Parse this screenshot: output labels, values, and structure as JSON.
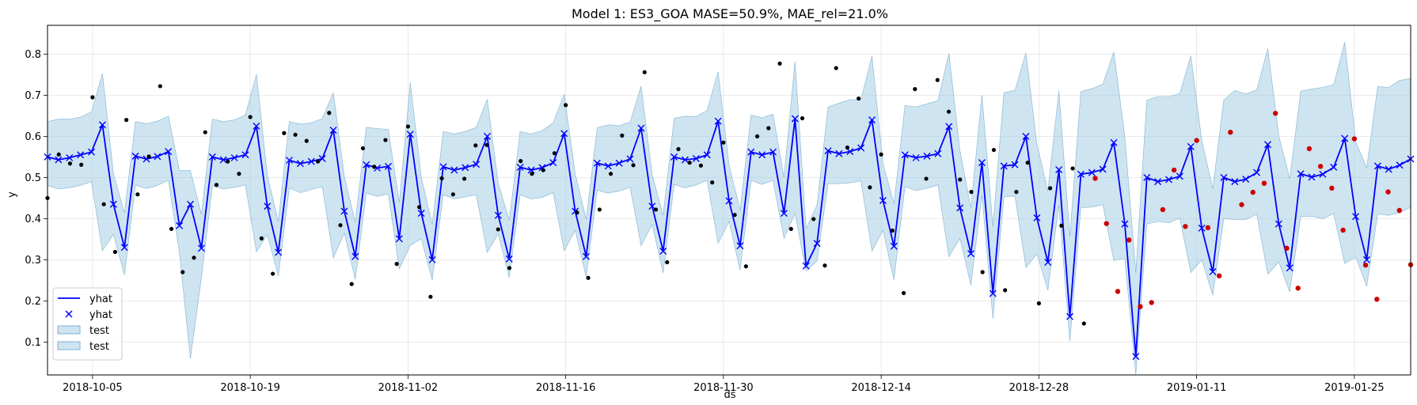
{
  "chart_data": {
    "type": "line",
    "title": "Model 1: ES3_GOA MASE=50.9%, MAE_rel=21.0%",
    "xlabel": "ds",
    "ylabel": "y",
    "x_start": "2018-10-01",
    "x_end": "2019-01-30",
    "xlim": [
      "2018-10-01",
      "2019-01-30"
    ],
    "ylim": [
      0.02,
      0.87
    ],
    "yticks": [
      0.1,
      0.2,
      0.3,
      0.4,
      0.5,
      0.6,
      0.7,
      0.8
    ],
    "ytick_labels": [
      "0.1",
      "0.2",
      "0.3",
      "0.4",
      "0.5",
      "0.6",
      "0.7",
      "0.8"
    ],
    "xticks": [
      "2018-10-05",
      "2018-10-19",
      "2018-11-02",
      "2018-11-16",
      "2018-11-30",
      "2018-12-14",
      "2018-12-28",
      "2019-01-11",
      "2019-01-25"
    ],
    "grid": true,
    "legend_position": "lower-left",
    "colors": {
      "yhat": "#0000ff",
      "band": "#a6cde3",
      "points": "#000000",
      "test_points": "#cc0000"
    },
    "legend": [
      {
        "label": "yhat",
        "kind": "line"
      },
      {
        "label": "yhat",
        "kind": "marker"
      },
      {
        "label": "test",
        "kind": "patch"
      },
      {
        "label": "test",
        "kind": "patch"
      }
    ],
    "series": [
      {
        "name": "yhat",
        "values": [
          0.55,
          0.543,
          0.548,
          0.555,
          0.562,
          0.628,
          0.435,
          0.33,
          0.552,
          0.545,
          0.551,
          0.563,
          0.383,
          0.435,
          0.328,
          0.55,
          0.543,
          0.548,
          0.555,
          0.625,
          0.43,
          0.318,
          0.542,
          0.534,
          0.539,
          0.546,
          0.615,
          0.418,
          0.308,
          0.531,
          0.523,
          0.527,
          0.351,
          0.605,
          0.413,
          0.3,
          0.526,
          0.518,
          0.524,
          0.532,
          0.6,
          0.408,
          0.302,
          0.525,
          0.518,
          0.524,
          0.536,
          0.607,
          0.418,
          0.308,
          0.535,
          0.528,
          0.535,
          0.545,
          0.62,
          0.43,
          0.321,
          0.55,
          0.543,
          0.546,
          0.555,
          0.637,
          0.443,
          0.334,
          0.562,
          0.555,
          0.562,
          0.413,
          0.643,
          0.285,
          0.34,
          0.565,
          0.558,
          0.563,
          0.572,
          0.64,
          0.444,
          0.333,
          0.555,
          0.548,
          0.552,
          0.558,
          0.624,
          0.426,
          0.315,
          0.536,
          0.218,
          0.528,
          0.531,
          0.6,
          0.402,
          0.294,
          0.519,
          0.162,
          0.508,
          0.512,
          0.52,
          0.585,
          0.387,
          0.065,
          0.5,
          0.49,
          0.495,
          0.503,
          0.575,
          0.377,
          0.271,
          0.5,
          0.49,
          0.496,
          0.512,
          0.58,
          0.387,
          0.28,
          0.509,
          0.501,
          0.508,
          0.525,
          0.595,
          0.405,
          0.3,
          0.528,
          0.52,
          0.53,
          0.545
        ]
      },
      {
        "name": "test",
        "upper": [
          0.636,
          0.642,
          0.642,
          0.647,
          0.659,
          0.753,
          0.509,
          0.414,
          0.636,
          0.631,
          0.637,
          0.649,
          0.517,
          0.517,
          0.41,
          0.642,
          0.636,
          0.64,
          0.652,
          0.751,
          0.505,
          0.393,
          0.636,
          0.63,
          0.633,
          0.643,
          0.706,
          0.502,
          0.391,
          0.622,
          0.619,
          0.617,
          0.439,
          0.731,
          0.5,
          0.386,
          0.612,
          0.606,
          0.612,
          0.622,
          0.69,
          0.486,
          0.396,
          0.612,
          0.606,
          0.614,
          0.633,
          0.702,
          0.509,
          0.398,
          0.621,
          0.628,
          0.626,
          0.635,
          0.722,
          0.507,
          0.408,
          0.644,
          0.649,
          0.648,
          0.663,
          0.757,
          0.529,
          0.421,
          0.652,
          0.645,
          0.654,
          0.5,
          0.782,
          0.375,
          0.433,
          0.671,
          0.681,
          0.689,
          0.689,
          0.795,
          0.533,
          0.437,
          0.675,
          0.672,
          0.679,
          0.687,
          0.802,
          0.565,
          0.426,
          0.7,
          0.381,
          0.706,
          0.712,
          0.803,
          0.582,
          0.467,
          0.71,
          0.356,
          0.709,
          0.716,
          0.727,
          0.806,
          0.599,
          0.269,
          0.688,
          0.697,
          0.697,
          0.704,
          0.796,
          0.59,
          0.473,
          0.688,
          0.712,
          0.703,
          0.713,
          0.813,
          0.602,
          0.497,
          0.71,
          0.715,
          0.719,
          0.726,
          0.829,
          0.587,
          0.523,
          0.721,
          0.719,
          0.736,
          0.741
        ],
        "lower": [
          0.48,
          0.472,
          0.475,
          0.481,
          0.49,
          0.322,
          0.362,
          0.263,
          0.482,
          0.473,
          0.481,
          0.493,
          0.318,
          0.06,
          0.256,
          0.48,
          0.472,
          0.476,
          0.482,
          0.32,
          0.361,
          0.261,
          0.474,
          0.463,
          0.471,
          0.478,
          0.305,
          0.365,
          0.252,
          0.462,
          0.454,
          0.46,
          0.278,
          0.335,
          0.351,
          0.251,
          0.458,
          0.448,
          0.453,
          0.458,
          0.318,
          0.363,
          0.257,
          0.458,
          0.448,
          0.452,
          0.463,
          0.322,
          0.372,
          0.258,
          0.469,
          0.462,
          0.467,
          0.476,
          0.334,
          0.386,
          0.268,
          0.483,
          0.475,
          0.482,
          0.493,
          0.34,
          0.393,
          0.275,
          0.493,
          0.483,
          0.493,
          0.352,
          0.413,
          0.273,
          0.297,
          0.485,
          0.485,
          0.487,
          0.492,
          0.321,
          0.372,
          0.251,
          0.478,
          0.468,
          0.474,
          0.482,
          0.307,
          0.352,
          0.238,
          0.458,
          0.157,
          0.453,
          0.455,
          0.281,
          0.314,
          0.226,
          0.434,
          0.102,
          0.427,
          0.428,
          0.434,
          0.298,
          0.303,
          0.021,
          0.387,
          0.393,
          0.39,
          0.401,
          0.269,
          0.3,
          0.214,
          0.4,
          0.398,
          0.398,
          0.411,
          0.265,
          0.295,
          0.222,
          0.405,
          0.406,
          0.4,
          0.412,
          0.291,
          0.306,
          0.236,
          0.411,
          0.408,
          0.414,
          0.428
        ]
      },
      {
        "name": "actual",
        "x_day_offsets": [
          0,
          1,
          2,
          3,
          4,
          5,
          6,
          7,
          8,
          9,
          10,
          11,
          12,
          13,
          14,
          15,
          16,
          17,
          18,
          19,
          20,
          21,
          22,
          23,
          24,
          25,
          26,
          27,
          28,
          29,
          30,
          31,
          32,
          33,
          34,
          35,
          36,
          37,
          38,
          39,
          40,
          41,
          42,
          43,
          44,
          45,
          46,
          47,
          48,
          49,
          50,
          51,
          52,
          53,
          54,
          55,
          56,
          57,
          58,
          59,
          60,
          61,
          62,
          63,
          64,
          65,
          66,
          67,
          68,
          69,
          70,
          71,
          72,
          73,
          74,
          75,
          76,
          77,
          78,
          79,
          80,
          81,
          82,
          83,
          84,
          85,
          86,
          87,
          88,
          89,
          90,
          91,
          92
        ],
        "values": [
          0.45,
          0.556,
          0.534,
          0.531,
          0.695,
          0.435,
          0.319,
          0.64,
          0.459,
          0.551,
          0.722,
          0.375,
          0.27,
          0.305,
          0.61,
          0.482,
          0.539,
          0.509,
          0.647,
          0.352,
          0.266,
          0.608,
          0.604,
          0.589,
          0.539,
          0.657,
          0.384,
          0.241,
          0.571,
          0.526,
          0.591,
          0.29,
          0.624,
          0.428,
          0.21,
          0.498,
          0.459,
          0.497,
          0.578,
          0.579,
          0.374,
          0.28,
          0.54,
          0.509,
          0.518,
          0.559,
          0.676,
          0.415,
          0.256,
          0.422,
          0.509,
          0.602,
          0.53,
          0.756,
          0.422,
          0.294,
          0.569,
          0.536,
          0.529,
          0.488,
          0.585,
          0.409,
          0.284,
          0.6,
          0.62,
          0.777,
          0.375,
          0.644,
          0.399,
          0.286,
          0.766,
          0.573,
          0.692,
          0.476,
          0.556,
          0.371,
          0.219,
          0.715,
          0.497,
          0.737,
          0.66,
          0.495,
          0.465,
          0.27,
          0.567,
          0.226,
          0.465,
          0.536,
          0.194,
          0.474,
          0.383,
          0.522,
          0.145
        ]
      },
      {
        "name": "test_actual",
        "x_day_offsets": [
          93,
          94,
          95,
          96,
          97,
          98,
          99,
          100,
          101,
          102,
          103,
          104,
          105,
          106,
          107,
          108,
          109,
          110,
          111,
          112,
          113,
          114,
          115,
          116,
          117,
          118,
          119,
          120,
          121
        ],
        "values": [
          0.498,
          0.388,
          0.223,
          0.348,
          0.186,
          0.196,
          0.422,
          0.518,
          0.381,
          0.59,
          0.378,
          0.261,
          0.61,
          0.434,
          0.464,
          0.486,
          0.656,
          0.328,
          0.231,
          0.57,
          0.527,
          0.474,
          0.372,
          0.594,
          0.287,
          0.204,
          0.465,
          0.42,
          0.288
        ]
      }
    ]
  }
}
